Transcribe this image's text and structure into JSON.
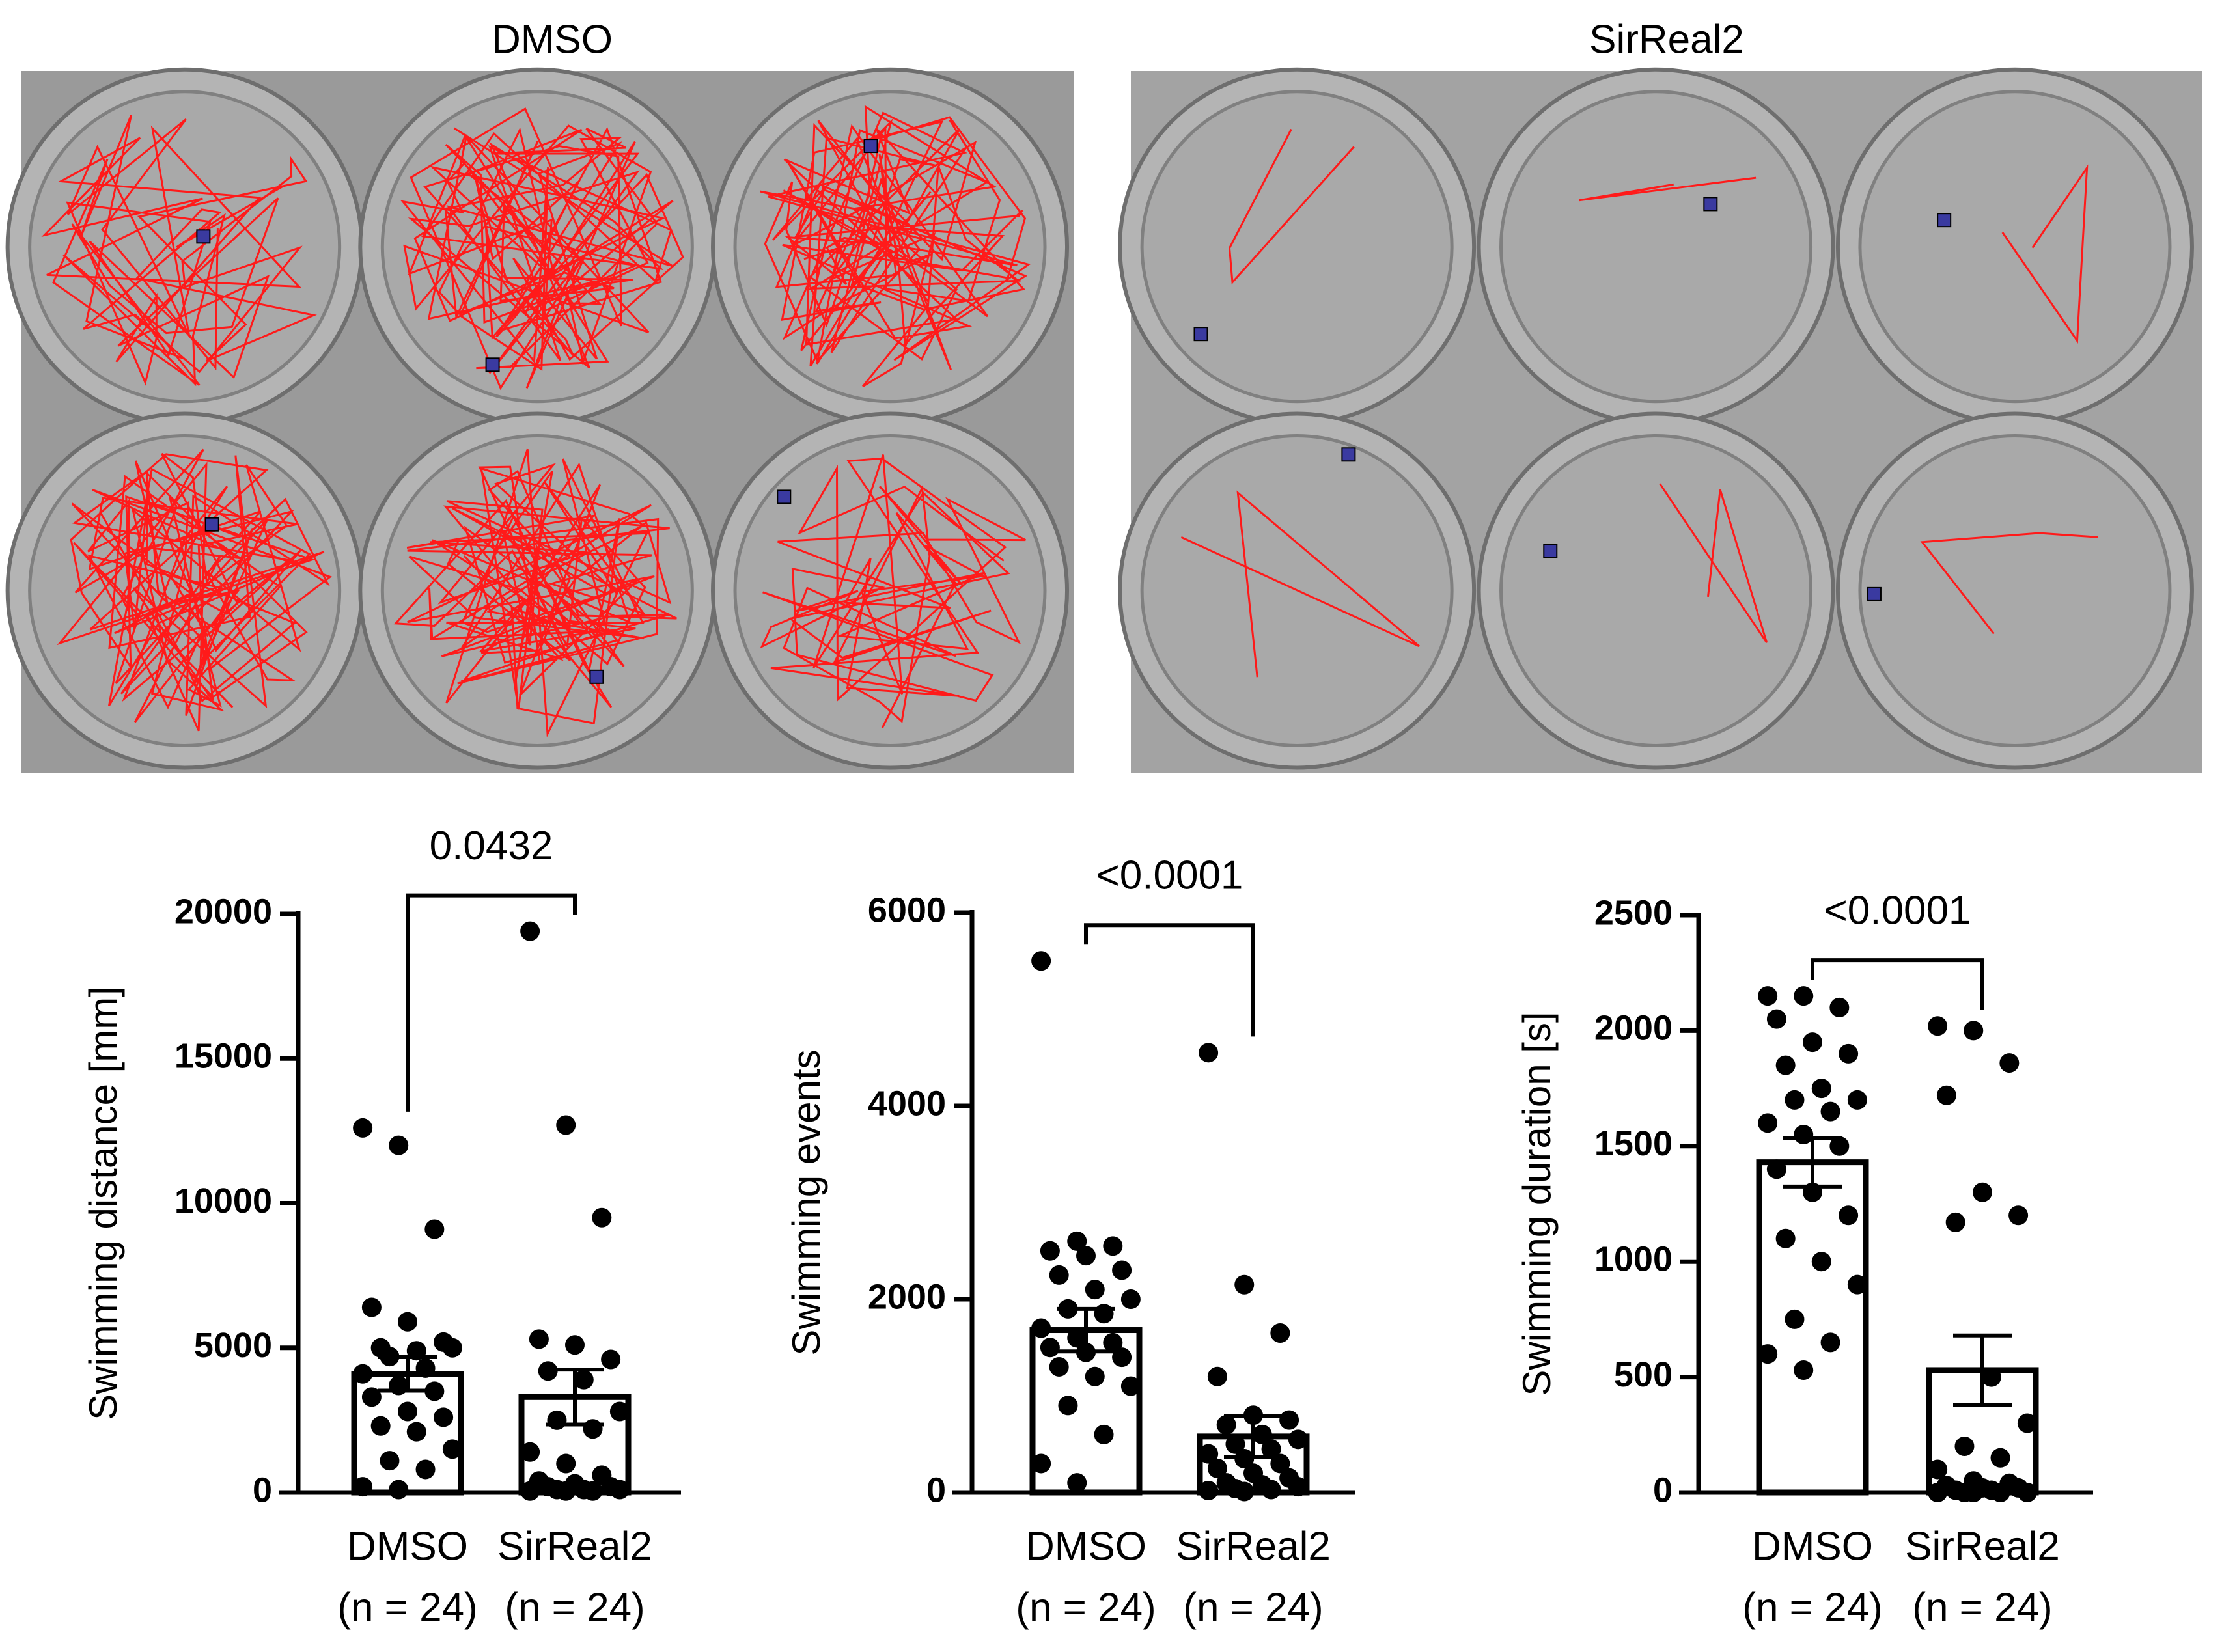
{
  "images": [
    {
      "title": "DMSO"
    },
    {
      "title": "SirReal2"
    }
  ],
  "chart_data": [
    {
      "type": "bar",
      "ylabel": "Swimming distance [mm]",
      "annotation": "0.0432",
      "categories": [
        "DMSO",
        "SirReal2"
      ],
      "category_notes": [
        "(n = 24)",
        "(n = 24)"
      ],
      "values": [
        4100,
        3300
      ],
      "errors": [
        580,
        950
      ],
      "color": "#ffffff",
      "point_color": "#000000",
      "points": [
        [
          12600,
          12000,
          9100,
          6400,
          5900,
          5200,
          5000,
          4900,
          5000,
          4700,
          4300,
          4100,
          3700,
          3500,
          3300,
          2800,
          2600,
          2300,
          2100,
          1500,
          1100,
          800,
          200,
          100
        ],
        [
          19400,
          12700,
          9500,
          5300,
          5100,
          4600,
          4200,
          3900,
          2800,
          2500,
          2200,
          1400,
          1000,
          600,
          400,
          300,
          200,
          200,
          100,
          100,
          100,
          50,
          50,
          50
        ]
      ],
      "ylim": [
        0,
        20000
      ],
      "yticks": [
        0,
        5000,
        10000,
        15000,
        20000
      ]
    },
    {
      "type": "bar",
      "ylabel": "Swimming events",
      "annotation": "<0.0001",
      "categories": [
        "DMSO",
        "SirReal2"
      ],
      "category_notes": [
        "(n = 24)",
        "(n = 24)"
      ],
      "values": [
        1680,
        580
      ],
      "errors": [
        220,
        210
      ],
      "color": "#ffffff",
      "point_color": "#000000",
      "points": [
        [
          5500,
          2600,
          2550,
          2500,
          2450,
          2300,
          2250,
          2100,
          2000,
          1900,
          1850,
          1700,
          1600,
          1550,
          1500,
          1450,
          1400,
          1300,
          1200,
          1100,
          900,
          600,
          300,
          100
        ],
        [
          4550,
          2150,
          1650,
          1200,
          800,
          750,
          700,
          600,
          550,
          500,
          450,
          400,
          350,
          300,
          250,
          200,
          150,
          100,
          80,
          60,
          40,
          30,
          20,
          10
        ]
      ],
      "ylim": [
        0,
        6000
      ],
      "yticks": [
        0,
        2000,
        4000,
        6000
      ]
    },
    {
      "type": "bar",
      "ylabel": "Swimming duration [s]",
      "annotation": "<0.0001",
      "categories": [
        "DMSO",
        "SirReal2"
      ],
      "category_notes": [
        "(n = 24)",
        "(n = 24)"
      ],
      "values": [
        1430,
        530
      ],
      "errors": [
        105,
        150
      ],
      "color": "#ffffff",
      "point_color": "#000000",
      "points": [
        [
          2150,
          2150,
          2100,
          2050,
          1950,
          1900,
          1850,
          1750,
          1700,
          1700,
          1650,
          1600,
          1550,
          1500,
          1400,
          1300,
          1200,
          1100,
          1000,
          900,
          750,
          650,
          600,
          530
        ],
        [
          2020,
          2000,
          1860,
          1720,
          1300,
          1200,
          1170,
          500,
          300,
          200,
          150,
          100,
          50,
          40,
          30,
          20,
          20,
          10,
          10,
          0,
          0,
          0,
          0,
          0
        ]
      ],
      "ylim": [
        0,
        2500
      ],
      "yticks": [
        0,
        500,
        1000,
        1500,
        2000,
        2500
      ]
    }
  ]
}
